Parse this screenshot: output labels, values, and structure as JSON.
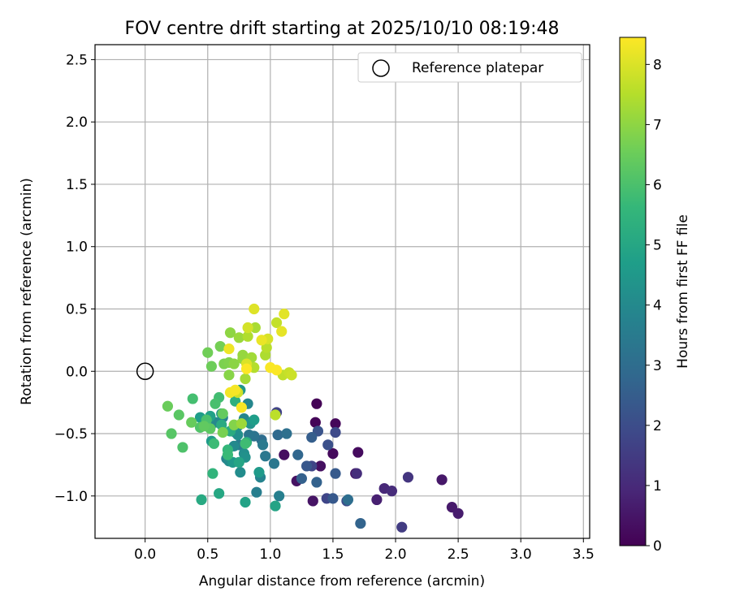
{
  "chart_data": {
    "type": "scatter",
    "title": "FOV centre drift starting at 2025/10/10 08:19:48",
    "xlabel": "Angular distance from reference (arcmin)",
    "ylabel": "Rotation from reference (arcmin)",
    "xlim": [
      -0.4,
      3.55
    ],
    "ylim": [
      -1.34,
      2.62
    ],
    "grid": true,
    "xticks": [
      0.0,
      0.5,
      1.0,
      1.5,
      2.0,
      2.5,
      3.0,
      3.5
    ],
    "xtick_labels": [
      "0.0",
      "0.5",
      "1.0",
      "1.5",
      "2.0",
      "2.5",
      "3.0",
      "3.5"
    ],
    "yticks": [
      -1.0,
      -0.5,
      0.0,
      0.5,
      1.0,
      1.5,
      2.0,
      2.5
    ],
    "ytick_labels": [
      "−1.0",
      "−0.5",
      "0.0",
      "0.5",
      "1.0",
      "1.5",
      "2.0",
      "2.5"
    ],
    "legend": {
      "position": "top-right",
      "entries": [
        "Reference platepar"
      ]
    },
    "reference_point": {
      "x": 0.0,
      "y": 0.0,
      "label": "Reference platepar"
    },
    "colorbar": {
      "label": "Hours from first FF file",
      "range": [
        0,
        8.45
      ],
      "ticks": [
        0,
        1,
        2,
        3,
        4,
        5,
        6,
        7,
        8
      ],
      "tick_labels": [
        "0",
        "1",
        "2",
        "3",
        "4",
        "5",
        "6",
        "7",
        "8"
      ],
      "colormap": "viridis",
      "stops": [
        "#440154",
        "#482878",
        "#3e4989",
        "#31688e",
        "#26828e",
        "#1f9e89",
        "#35b779",
        "#6ece58",
        "#b5de2b",
        "#fde725"
      ]
    },
    "series": [
      {
        "name": "FOV centre",
        "points": [
          {
            "x": 1.37,
            "y": -0.26,
            "c": 0.05
          },
          {
            "x": 1.36,
            "y": -0.41,
            "c": 0.1
          },
          {
            "x": 1.52,
            "y": -0.42,
            "c": 0.15
          },
          {
            "x": 1.5,
            "y": -0.66,
            "c": 0.2
          },
          {
            "x": 1.7,
            "y": -0.65,
            "c": 0.25
          },
          {
            "x": 1.11,
            "y": -0.67,
            "c": 0.3
          },
          {
            "x": 1.4,
            "y": -0.76,
            "c": 0.35
          },
          {
            "x": 1.21,
            "y": -0.88,
            "c": 0.4
          },
          {
            "x": 1.34,
            "y": -1.04,
            "c": 0.45
          },
          {
            "x": 1.68,
            "y": -0.82,
            "c": 0.5
          },
          {
            "x": 2.37,
            "y": -0.87,
            "c": 0.55
          },
          {
            "x": 2.45,
            "y": -1.09,
            "c": 0.6
          },
          {
            "x": 2.5,
            "y": -1.14,
            "c": 0.65
          },
          {
            "x": 1.85,
            "y": -1.03,
            "c": 0.75
          },
          {
            "x": 1.91,
            "y": -0.94,
            "c": 0.95
          },
          {
            "x": 1.97,
            "y": -0.96,
            "c": 1.05
          },
          {
            "x": 1.69,
            "y": -0.82,
            "c": 1.1
          },
          {
            "x": 2.1,
            "y": -0.85,
            "c": 1.3
          },
          {
            "x": 2.05,
            "y": -1.25,
            "c": 1.5
          },
          {
            "x": 1.05,
            "y": -0.33,
            "c": 1.7
          },
          {
            "x": 1.33,
            "y": -0.76,
            "c": 1.75
          },
          {
            "x": 1.45,
            "y": -1.02,
            "c": 1.8
          },
          {
            "x": 1.52,
            "y": -0.49,
            "c": 1.9
          },
          {
            "x": 1.61,
            "y": -1.04,
            "c": 2.0
          },
          {
            "x": 1.46,
            "y": -0.59,
            "c": 2.1
          },
          {
            "x": 1.38,
            "y": -0.48,
            "c": 2.2
          },
          {
            "x": 1.29,
            "y": -0.76,
            "c": 2.3
          },
          {
            "x": 1.5,
            "y": -1.02,
            "c": 2.35
          },
          {
            "x": 1.52,
            "y": -0.82,
            "c": 2.4
          },
          {
            "x": 1.33,
            "y": -0.53,
            "c": 2.5
          },
          {
            "x": 1.25,
            "y": -0.86,
            "c": 2.6
          },
          {
            "x": 1.37,
            "y": -0.89,
            "c": 2.65
          },
          {
            "x": 1.72,
            "y": -1.22,
            "c": 2.7
          },
          {
            "x": 1.22,
            "y": -0.67,
            "c": 2.8
          },
          {
            "x": 1.06,
            "y": -0.51,
            "c": 2.9
          },
          {
            "x": 0.93,
            "y": -0.55,
            "c": 3.0
          },
          {
            "x": 1.62,
            "y": -1.03,
            "c": 3.05
          },
          {
            "x": 1.13,
            "y": -0.5,
            "c": 3.1
          },
          {
            "x": 0.87,
            "y": -0.52,
            "c": 3.2
          },
          {
            "x": 0.83,
            "y": -0.51,
            "c": 3.3
          },
          {
            "x": 1.03,
            "y": -0.74,
            "c": 3.35
          },
          {
            "x": 0.96,
            "y": -0.68,
            "c": 3.4
          },
          {
            "x": 0.94,
            "y": -0.59,
            "c": 3.45
          },
          {
            "x": 0.75,
            "y": -0.59,
            "c": 3.5
          },
          {
            "x": 0.72,
            "y": -0.49,
            "c": 3.55
          },
          {
            "x": 0.89,
            "y": -0.97,
            "c": 3.6
          },
          {
            "x": 1.07,
            "y": -1.0,
            "c": 3.65
          },
          {
            "x": 0.65,
            "y": -0.7,
            "c": 3.7
          },
          {
            "x": 0.62,
            "y": -0.37,
            "c": 3.75
          },
          {
            "x": 0.92,
            "y": -0.85,
            "c": 3.8
          },
          {
            "x": 0.79,
            "y": -0.38,
            "c": 3.85
          },
          {
            "x": 0.82,
            "y": -0.26,
            "c": 3.9
          },
          {
            "x": 0.56,
            "y": -0.41,
            "c": 3.95
          },
          {
            "x": 0.71,
            "y": -0.6,
            "c": 4.0
          },
          {
            "x": 0.67,
            "y": -0.72,
            "c": 4.05
          },
          {
            "x": 0.76,
            "y": -0.81,
            "c": 4.1
          },
          {
            "x": 0.79,
            "y": -0.66,
            "c": 4.15
          },
          {
            "x": 0.74,
            "y": -0.51,
            "c": 4.2
          },
          {
            "x": 0.8,
            "y": -0.69,
            "c": 4.25
          },
          {
            "x": 0.74,
            "y": -0.44,
            "c": 4.3
          },
          {
            "x": 0.84,
            "y": -0.42,
            "c": 4.35
          },
          {
            "x": 0.61,
            "y": -0.34,
            "c": 4.4
          },
          {
            "x": 0.76,
            "y": -0.15,
            "c": 4.45
          },
          {
            "x": 0.7,
            "y": -0.73,
            "c": 4.5
          },
          {
            "x": 0.91,
            "y": -0.81,
            "c": 4.55
          },
          {
            "x": 0.53,
            "y": -0.56,
            "c": 4.6
          },
          {
            "x": 0.44,
            "y": -0.37,
            "c": 4.65
          },
          {
            "x": 0.87,
            "y": -0.39,
            "c": 4.7
          },
          {
            "x": 0.52,
            "y": -0.36,
            "c": 4.8
          },
          {
            "x": 0.8,
            "y": -1.05,
            "c": 4.85
          },
          {
            "x": 1.04,
            "y": -1.08,
            "c": 4.9
          },
          {
            "x": 0.75,
            "y": -0.73,
            "c": 4.95
          },
          {
            "x": 0.59,
            "y": -0.98,
            "c": 5.05
          },
          {
            "x": 0.45,
            "y": -1.03,
            "c": 5.1
          },
          {
            "x": 0.61,
            "y": -0.43,
            "c": 5.15
          },
          {
            "x": 0.68,
            "y": -0.48,
            "c": 5.2
          },
          {
            "x": 0.81,
            "y": -0.57,
            "c": 5.3
          },
          {
            "x": 0.72,
            "y": -0.24,
            "c": 5.35
          },
          {
            "x": 0.54,
            "y": -0.82,
            "c": 5.5
          },
          {
            "x": 0.66,
            "y": -0.63,
            "c": 5.6
          },
          {
            "x": 0.77,
            "y": -0.42,
            "c": 5.65
          },
          {
            "x": 0.66,
            "y": -0.67,
            "c": 5.7
          },
          {
            "x": 0.55,
            "y": -0.58,
            "c": 5.75
          },
          {
            "x": 0.8,
            "y": -0.58,
            "c": 5.8
          },
          {
            "x": 0.59,
            "y": -0.21,
            "c": 5.85
          },
          {
            "x": 0.38,
            "y": -0.22,
            "c": 5.9
          },
          {
            "x": 0.56,
            "y": -0.26,
            "c": 5.95
          },
          {
            "x": 0.49,
            "y": -0.39,
            "c": 6.0
          },
          {
            "x": 0.3,
            "y": -0.61,
            "c": 6.05
          },
          {
            "x": 0.44,
            "y": -0.45,
            "c": 6.1
          },
          {
            "x": 0.21,
            "y": -0.5,
            "c": 6.2
          },
          {
            "x": 0.27,
            "y": -0.35,
            "c": 6.25
          },
          {
            "x": 0.52,
            "y": -0.46,
            "c": 6.3
          },
          {
            "x": 0.47,
            "y": -0.44,
            "c": 6.35
          },
          {
            "x": 0.62,
            "y": -0.34,
            "c": 6.4
          },
          {
            "x": 0.37,
            "y": -0.41,
            "c": 6.45
          },
          {
            "x": 0.18,
            "y": -0.28,
            "c": 6.5
          },
          {
            "x": 0.53,
            "y": 0.04,
            "c": 6.55
          },
          {
            "x": 0.5,
            "y": 0.15,
            "c": 6.6
          },
          {
            "x": 0.6,
            "y": 0.2,
            "c": 6.65
          },
          {
            "x": 0.62,
            "y": -0.49,
            "c": 6.7
          },
          {
            "x": 0.63,
            "y": 0.06,
            "c": 6.75
          },
          {
            "x": 0.67,
            "y": 0.07,
            "c": 6.8
          },
          {
            "x": 0.71,
            "y": -0.43,
            "c": 6.85
          },
          {
            "x": 0.67,
            "y": -0.03,
            "c": 6.9
          },
          {
            "x": 0.71,
            "y": 0.06,
            "c": 6.95
          },
          {
            "x": 0.68,
            "y": 0.31,
            "c": 7.0
          },
          {
            "x": 0.78,
            "y": 0.1,
            "c": 7.05
          },
          {
            "x": 0.78,
            "y": 0.13,
            "c": 7.1
          },
          {
            "x": 0.75,
            "y": 0.27,
            "c": 7.15
          },
          {
            "x": 0.77,
            "y": -0.42,
            "c": 7.2
          },
          {
            "x": 0.85,
            "y": 0.11,
            "c": 7.25
          },
          {
            "x": 0.8,
            "y": -0.06,
            "c": 7.3
          },
          {
            "x": 0.88,
            "y": 0.35,
            "c": 7.35
          },
          {
            "x": 0.96,
            "y": 0.13,
            "c": 7.4
          },
          {
            "x": 0.82,
            "y": 0.28,
            "c": 7.45
          },
          {
            "x": 0.87,
            "y": 0.03,
            "c": 7.5
          },
          {
            "x": 0.97,
            "y": 0.19,
            "c": 7.55
          },
          {
            "x": 1.04,
            "y": -0.35,
            "c": 7.6
          },
          {
            "x": 1.1,
            "y": -0.03,
            "c": 7.65
          },
          {
            "x": 1.05,
            "y": 0.39,
            "c": 7.7
          },
          {
            "x": 1.15,
            "y": -0.01,
            "c": 7.75
          },
          {
            "x": 1.17,
            "y": -0.03,
            "c": 7.8
          },
          {
            "x": 0.74,
            "y": -0.17,
            "c": 7.85
          },
          {
            "x": 0.82,
            "y": 0.35,
            "c": 7.9
          },
          {
            "x": 0.98,
            "y": 0.26,
            "c": 7.95
          },
          {
            "x": 0.81,
            "y": 0.06,
            "c": 8.0
          },
          {
            "x": 0.87,
            "y": 0.5,
            "c": 8.05
          },
          {
            "x": 1.11,
            "y": 0.46,
            "c": 8.1
          },
          {
            "x": 1.09,
            "y": 0.32,
            "c": 8.15
          },
          {
            "x": 0.93,
            "y": 0.25,
            "c": 8.2
          },
          {
            "x": 0.67,
            "y": 0.18,
            "c": 8.25
          },
          {
            "x": 0.68,
            "y": -0.17,
            "c": 8.3
          },
          {
            "x": 0.72,
            "y": -0.15,
            "c": 8.35
          },
          {
            "x": 0.77,
            "y": -0.29,
            "c": 8.38
          },
          {
            "x": 1.0,
            "y": 0.03,
            "c": 8.4
          },
          {
            "x": 1.05,
            "y": 0.01,
            "c": 8.42
          },
          {
            "x": 0.81,
            "y": 0.02,
            "c": 8.44
          }
        ]
      }
    ]
  }
}
